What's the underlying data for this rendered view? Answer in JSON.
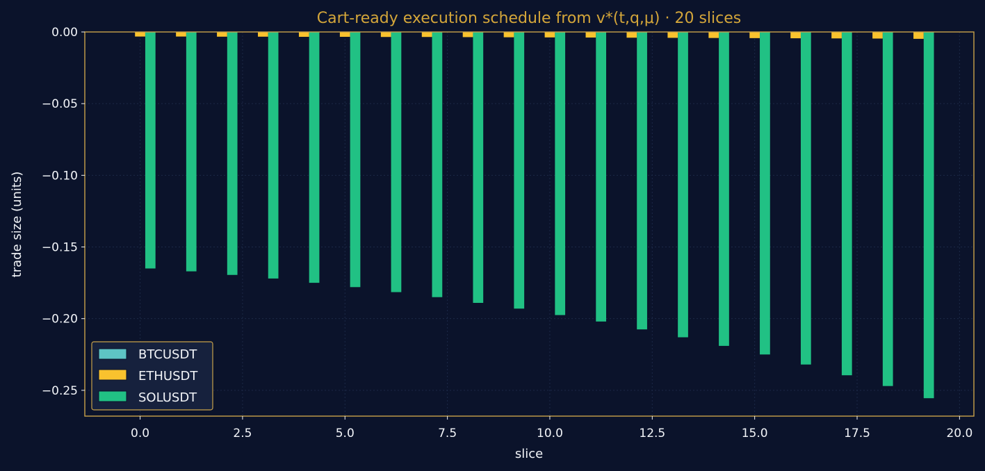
{
  "colors": {
    "background": "#0b132b",
    "frame": "#c9a24a",
    "grid": "#1c2947",
    "title": "#d4a63a",
    "text": "#f2f4f8",
    "legend_bg": "#16213d",
    "legend_border": "#c9a24a"
  },
  "chart_data": {
    "type": "bar",
    "title": "Cart-ready execution schedule from v*(t,q,μ) · 20 slices",
    "xlabel": "slice",
    "ylabel": "trade size (units)",
    "xlim": [
      -1.35,
      20.35
    ],
    "ylim": [
      -0.268,
      0.0
    ],
    "grid": true,
    "legend_position": "lower-left",
    "xticks": [
      0.0,
      2.5,
      5.0,
      7.5,
      10.0,
      12.5,
      15.0,
      17.5,
      20.0
    ],
    "xtick_labels": [
      "0.0",
      "2.5",
      "5.0",
      "7.5",
      "10.0",
      "12.5",
      "15.0",
      "17.5",
      "20.0"
    ],
    "yticks": [
      0.0,
      -0.05,
      -0.1,
      -0.15,
      -0.2,
      -0.25
    ],
    "ytick_labels": [
      "0.00",
      "−0.05",
      "−0.10",
      "−0.15",
      "−0.20",
      "−0.25"
    ],
    "x": [
      0,
      1,
      2,
      3,
      4,
      5,
      6,
      7,
      8,
      9,
      10,
      11,
      12,
      13,
      14,
      15,
      16,
      17,
      18,
      19
    ],
    "series": [
      {
        "name": "BTCUSDT",
        "color": "#5ec4c4",
        "values": [
          0,
          0,
          0,
          0,
          0,
          0,
          0,
          0,
          0,
          0,
          0,
          0,
          0,
          0,
          0,
          0,
          0,
          0,
          0,
          0
        ]
      },
      {
        "name": "ETHUSDT",
        "color": "#f9c22e",
        "values": [
          -0.0032,
          -0.0032,
          -0.0033,
          -0.0033,
          -0.0034,
          -0.0034,
          -0.0035,
          -0.0035,
          -0.0036,
          -0.0037,
          -0.0038,
          -0.0039,
          -0.004,
          -0.0041,
          -0.0042,
          -0.0043,
          -0.0044,
          -0.0045,
          -0.0046,
          -0.0048
        ]
      },
      {
        "name": "SOLUSDT",
        "color": "#21c184",
        "values": [
          -0.165,
          -0.167,
          -0.1695,
          -0.172,
          -0.175,
          -0.178,
          -0.1815,
          -0.185,
          -0.189,
          -0.193,
          -0.1975,
          -0.202,
          -0.2075,
          -0.213,
          -0.219,
          -0.225,
          -0.232,
          -0.2395,
          -0.247,
          -0.2555
        ]
      }
    ]
  }
}
